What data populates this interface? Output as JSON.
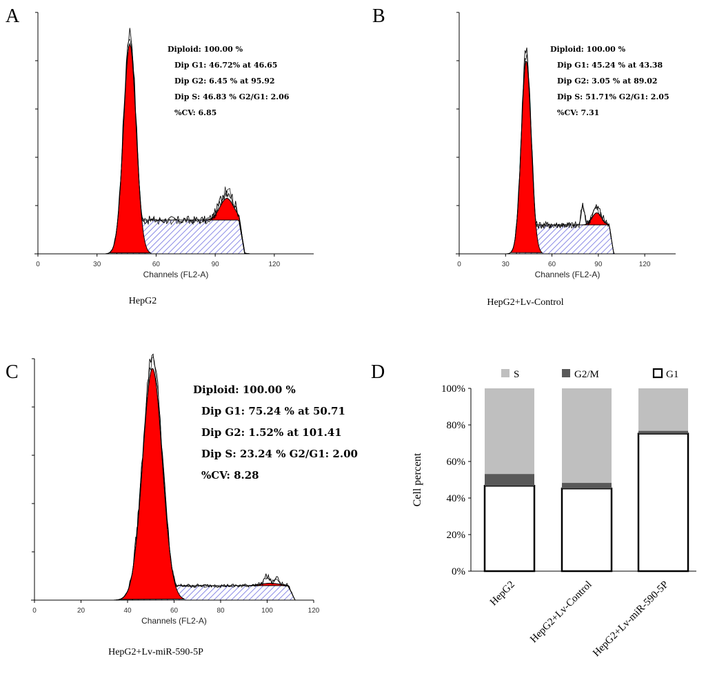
{
  "chart_data": [
    {
      "id": "A",
      "type": "area",
      "panel_label": "A",
      "caption": "HepG2",
      "xlabel": "Channels (FL2-A)",
      "xlim": [
        0,
        140
      ],
      "xticks": [
        0,
        30,
        60,
        90,
        120
      ],
      "ylim": [
        0,
        100
      ],
      "stats": [
        "Diploid: 100.00 %",
        "Dip G1: 46.72% at 46.65",
        "Dip G2: 6.45 % at 95.92",
        "Dip S: 46.83 %   G2/G1: 2.06",
        "%CV: 6.85"
      ],
      "g1": {
        "mean": 46.65,
        "sd": 3.2,
        "height": 87
      },
      "g2": {
        "mean": 95.92,
        "sd": 3.5,
        "height": 9
      },
      "s_phase": {
        "start": 40,
        "end": 105,
        "height": 14
      },
      "raw_peak": [
        {
          "x": 46,
          "y": 94
        },
        {
          "x": 92,
          "y": 19
        },
        {
          "x": 97,
          "y": 21
        }
      ]
    },
    {
      "id": "B",
      "type": "area",
      "panel_label": "B",
      "caption": "HepG2+Lv-Control",
      "xlabel": "Channels (FL2-A)",
      "xlim": [
        0,
        140
      ],
      "xticks": [
        0,
        30,
        60,
        90,
        120
      ],
      "ylim": [
        0,
        100
      ],
      "stats": [
        "Diploid: 100.00 %",
        "Dip G1: 45.24 % at 43.38",
        "Dip G2: 3.05 % at 89.02",
        "Dip S: 51.71%   G2/G1: 2.05",
        "%CV: 7.31"
      ],
      "g1": {
        "mean": 43.38,
        "sd": 3.2,
        "height": 80
      },
      "g2": {
        "mean": 89.02,
        "sd": 3,
        "height": 5
      },
      "s_phase": {
        "start": 37,
        "end": 100,
        "height": 12
      },
      "raw_peak": [
        {
          "x": 44,
          "y": 95
        },
        {
          "x": 80,
          "y": 19
        },
        {
          "x": 86,
          "y": 16
        }
      ]
    },
    {
      "id": "C",
      "type": "area",
      "panel_label": "C",
      "caption": "HepG2+Lv-miR-590-5P",
      "xlabel": "Channels (FL2-A)",
      "xlim": [
        0,
        120
      ],
      "xticks": [
        0,
        20,
        40,
        60,
        80,
        100,
        120
      ],
      "ylim": [
        0,
        100
      ],
      "stats": [
        "Diploid: 100.00 %",
        "Dip G1: 75.24 % at 50.71",
        "Dip G2: 1.52% at 101.41",
        "Dip S: 23.24 %   G2/G1: 2.00",
        "%CV: 8.28"
      ],
      "g1": {
        "mean": 50.71,
        "sd": 4.2,
        "height": 96
      },
      "g2": {
        "mean": 101.41,
        "sd": 4,
        "height": 1
      },
      "s_phase": {
        "start": 42,
        "end": 112,
        "height": 6
      },
      "raw_peak": [
        {
          "x": 51,
          "y": 100
        },
        {
          "x": 100,
          "y": 10
        },
        {
          "x": 104,
          "y": 9
        }
      ]
    },
    {
      "id": "D",
      "type": "bar",
      "stacked": true,
      "panel_label": "D",
      "ylabel": "Cell percent",
      "ylim": [
        0,
        100
      ],
      "yticks": [
        "0%",
        "20%",
        "40%",
        "60%",
        "80%",
        "100%"
      ],
      "categories": [
        "HepG2",
        "HepG2+Lv-Control",
        "HepG2+Lv-miR-590-5P"
      ],
      "series": [
        {
          "name": "G1",
          "values": [
            46.72,
            45.24,
            75.24
          ],
          "color": "#ffffff"
        },
        {
          "name": "G2/M",
          "values": [
            6.45,
            3.05,
            1.52
          ],
          "color": "#595959"
        },
        {
          "name": "S",
          "values": [
            46.83,
            51.71,
            23.24
          ],
          "color": "#bfbfbf"
        }
      ],
      "legend": [
        "S",
        "G2/M",
        "G1"
      ]
    }
  ]
}
